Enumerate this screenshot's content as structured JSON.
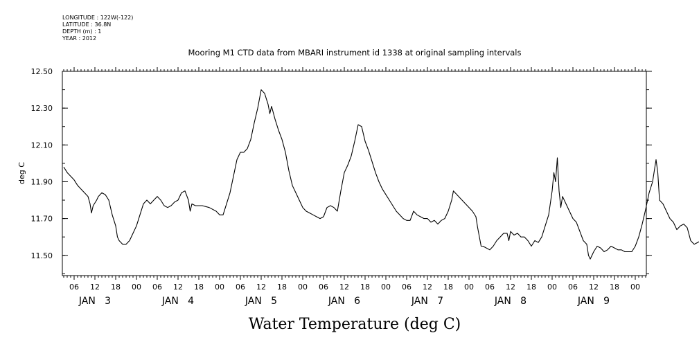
{
  "meta": {
    "longitude": "LONGITUDE : 122W(-122)",
    "latitude": "LATITUDE : 36.8N",
    "depth": "DEPTH (m) : 1",
    "year": "YEAR : 2012"
  },
  "chart_data": {
    "type": "line",
    "title": "Mooring M1 CTD data from MBARI instrument id 1338 at original sampling intervals",
    "xlabel": "Water Temperature (deg C)",
    "ylabel": "deg C",
    "xlim_hours": [
      0,
      167
    ],
    "ylim": [
      11.39,
      12.5
    ],
    "yticks": [
      "12.50",
      "12.30",
      "12.10",
      "11.90",
      "11.70",
      "11.50"
    ],
    "x_hour_tick_labels": [
      "06",
      "12",
      "18",
      "00"
    ],
    "x_day_labels": [
      "JAN   3",
      "JAN   4",
      "JAN   5",
      "JAN   6",
      "JAN   7",
      "JAN   8",
      "JAN   9"
    ],
    "series": [
      {
        "points": [
          [
            0,
            11.98
          ],
          [
            1,
            11.95
          ],
          [
            2,
            11.93
          ],
          [
            3,
            11.91
          ],
          [
            4,
            11.88
          ],
          [
            5,
            11.86
          ],
          [
            6,
            11.84
          ],
          [
            7,
            11.82
          ],
          [
            7.6,
            11.78
          ],
          [
            8,
            11.73
          ],
          [
            8.5,
            11.77
          ],
          [
            9.5,
            11.8
          ],
          [
            10,
            11.82
          ],
          [
            11,
            11.84
          ],
          [
            12,
            11.83
          ],
          [
            13,
            11.8
          ],
          [
            14,
            11.72
          ],
          [
            15,
            11.66
          ],
          [
            15.5,
            11.6
          ],
          [
            16,
            11.58
          ],
          [
            17,
            11.56
          ],
          [
            18,
            11.56
          ],
          [
            19,
            11.58
          ],
          [
            20,
            11.62
          ],
          [
            21,
            11.66
          ],
          [
            22,
            11.72
          ],
          [
            23,
            11.78
          ],
          [
            24,
            11.8
          ],
          [
            25,
            11.78
          ],
          [
            26,
            11.8
          ],
          [
            27,
            11.82
          ],
          [
            28,
            11.8
          ],
          [
            29,
            11.77
          ],
          [
            30,
            11.76
          ],
          [
            31,
            11.77
          ],
          [
            32,
            11.79
          ],
          [
            33,
            11.8
          ],
          [
            34,
            11.84
          ],
          [
            35,
            11.85
          ],
          [
            36,
            11.8
          ],
          [
            36.5,
            11.74
          ],
          [
            37,
            11.78
          ],
          [
            38,
            11.77
          ],
          [
            40,
            11.77
          ],
          [
            42,
            11.76
          ],
          [
            44,
            11.74
          ],
          [
            45,
            11.72
          ],
          [
            46,
            11.72
          ],
          [
            47,
            11.78
          ],
          [
            48,
            11.84
          ],
          [
            49,
            11.93
          ],
          [
            50,
            12.02
          ],
          [
            51,
            12.06
          ],
          [
            52,
            12.06
          ],
          [
            53,
            12.08
          ],
          [
            54,
            12.13
          ],
          [
            55,
            12.22
          ],
          [
            56,
            12.3
          ],
          [
            57,
            12.4
          ],
          [
            58,
            12.38
          ],
          [
            59,
            12.32
          ],
          [
            59.5,
            12.27
          ],
          [
            60,
            12.31
          ],
          [
            61,
            12.24
          ],
          [
            62,
            12.18
          ],
          [
            63,
            12.13
          ],
          [
            64,
            12.06
          ],
          [
            65,
            11.96
          ],
          [
            66,
            11.88
          ],
          [
            67,
            11.84
          ],
          [
            68,
            11.8
          ],
          [
            69,
            11.76
          ],
          [
            70,
            11.74
          ],
          [
            71,
            11.73
          ],
          [
            72,
            11.72
          ],
          [
            73,
            11.71
          ],
          [
            74,
            11.7
          ],
          [
            75,
            11.71
          ],
          [
            76,
            11.76
          ],
          [
            77,
            11.77
          ],
          [
            78,
            11.76
          ],
          [
            79,
            11.74
          ],
          [
            80,
            11.85
          ],
          [
            81,
            11.95
          ],
          [
            82,
            11.99
          ],
          [
            83,
            12.04
          ],
          [
            84,
            12.12
          ],
          [
            85,
            12.21
          ],
          [
            86,
            12.2
          ],
          [
            87,
            12.12
          ],
          [
            88,
            12.07
          ],
          [
            89,
            12.01
          ],
          [
            90,
            11.95
          ],
          [
            91,
            11.9
          ],
          [
            92,
            11.86
          ],
          [
            93,
            11.83
          ],
          [
            94,
            11.8
          ],
          [
            95,
            11.77
          ],
          [
            96,
            11.74
          ],
          [
            97,
            11.72
          ],
          [
            98,
            11.7
          ],
          [
            99,
            11.69
          ],
          [
            100,
            11.69
          ],
          [
            101,
            11.74
          ],
          [
            102,
            11.72
          ],
          [
            103,
            11.71
          ],
          [
            104,
            11.7
          ],
          [
            105,
            11.7
          ],
          [
            106,
            11.68
          ],
          [
            107,
            11.69
          ],
          [
            108,
            11.67
          ],
          [
            109,
            11.69
          ],
          [
            110,
            11.7
          ],
          [
            111,
            11.74
          ],
          [
            112,
            11.8
          ],
          [
            112.5,
            11.85
          ],
          [
            114,
            11.82
          ],
          [
            116,
            11.78
          ],
          [
            118,
            11.74
          ],
          [
            119,
            11.71
          ],
          [
            119.5,
            11.65
          ],
          [
            120,
            11.6
          ],
          [
            120.5,
            11.55
          ],
          [
            121,
            11.55
          ],
          [
            122,
            11.54
          ],
          [
            123,
            11.53
          ],
          [
            124,
            11.55
          ],
          [
            125,
            11.58
          ],
          [
            126,
            11.6
          ],
          [
            127,
            11.62
          ],
          [
            128,
            11.62
          ],
          [
            128.5,
            11.58
          ],
          [
            129,
            11.63
          ],
          [
            130,
            11.61
          ],
          [
            131,
            11.62
          ],
          [
            132,
            11.6
          ],
          [
            133,
            11.6
          ],
          [
            134,
            11.58
          ],
          [
            135,
            11.55
          ],
          [
            136,
            11.58
          ],
          [
            137,
            11.57
          ],
          [
            138,
            11.6
          ],
          [
            139,
            11.66
          ],
          [
            140,
            11.72
          ],
          [
            141,
            11.85
          ],
          [
            141.5,
            11.95
          ],
          [
            142,
            11.9
          ],
          [
            142.5,
            12.03
          ],
          [
            143,
            11.85
          ],
          [
            143.5,
            11.76
          ],
          [
            144,
            11.82
          ],
          [
            145,
            11.78
          ],
          [
            146,
            11.74
          ],
          [
            147,
            11.7
          ],
          [
            148,
            11.68
          ],
          [
            149,
            11.63
          ],
          [
            150,
            11.58
          ],
          [
            151,
            11.56
          ],
          [
            151.5,
            11.5
          ],
          [
            152,
            11.48
          ],
          [
            153,
            11.52
          ],
          [
            154,
            11.55
          ],
          [
            155,
            11.54
          ],
          [
            156,
            11.52
          ],
          [
            157,
            11.53
          ],
          [
            158,
            11.55
          ],
          [
            159,
            11.54
          ],
          [
            160,
            11.53
          ],
          [
            161,
            11.53
          ],
          [
            162,
            11.52
          ],
          [
            163,
            11.52
          ],
          [
            164,
            11.52
          ],
          [
            165,
            11.55
          ],
          [
            166,
            11.6
          ],
          [
            167,
            11.67
          ],
          [
            168,
            11.75
          ],
          [
            169,
            11.84
          ],
          [
            170,
            11.9
          ],
          [
            170.5,
            11.96
          ],
          [
            171,
            12.02
          ],
          [
            171.5,
            11.95
          ],
          [
            172,
            11.8
          ],
          [
            173,
            11.78
          ],
          [
            174,
            11.74
          ],
          [
            175,
            11.7
          ],
          [
            176,
            11.68
          ],
          [
            177,
            11.64
          ],
          [
            178,
            11.66
          ],
          [
            179,
            11.67
          ],
          [
            180,
            11.65
          ],
          [
            181,
            11.58
          ],
          [
            182,
            11.56
          ],
          [
            183,
            11.57
          ],
          [
            184,
            11.58
          ],
          [
            185,
            11.55
          ],
          [
            186,
            11.56
          ],
          [
            187,
            11.57
          ],
          [
            188,
            11.58
          ],
          [
            189,
            11.59
          ],
          [
            190,
            11.6
          ],
          [
            191,
            11.59
          ],
          [
            192,
            11.6
          ],
          [
            193,
            11.61
          ],
          [
            194,
            11.66
          ],
          [
            195,
            11.76
          ],
          [
            196,
            11.79
          ],
          [
            196.5,
            11.92
          ],
          [
            197,
            11.88
          ],
          [
            197.5,
            12.02
          ],
          [
            198,
            11.84
          ]
        ]
      }
    ]
  }
}
